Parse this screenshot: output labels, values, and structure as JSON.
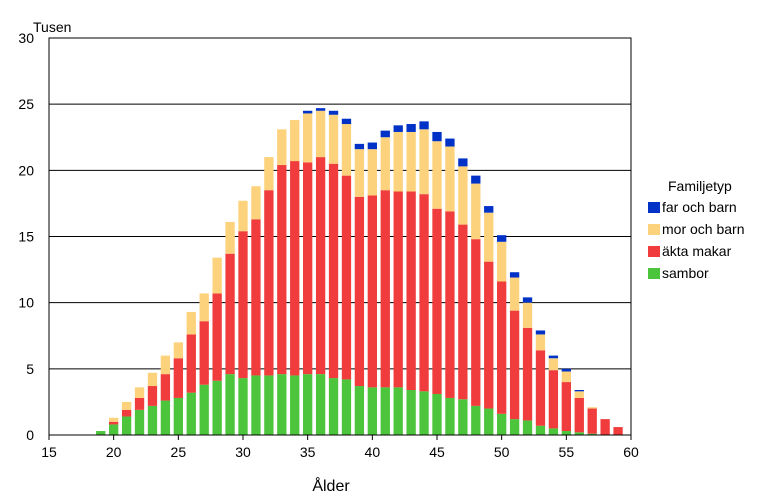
{
  "chart_data": {
    "type": "bar",
    "stacked": true,
    "unit_label": "Tusen",
    "xlabel": "Ålder",
    "xlim": [
      15,
      60
    ],
    "xticks": [
      15,
      20,
      25,
      30,
      35,
      40,
      45,
      50,
      55,
      60
    ],
    "ylim": [
      0,
      30
    ],
    "yticks": [
      0,
      5,
      10,
      15,
      20,
      25,
      30
    ],
    "grid": true,
    "legend_title": "Familjetyp",
    "legend_position": "right",
    "ages": [
      19,
      20,
      21,
      22,
      23,
      24,
      25,
      26,
      27,
      28,
      29,
      30,
      31,
      32,
      33,
      34,
      35,
      36,
      37,
      38,
      39,
      40,
      41,
      42,
      43,
      44,
      45,
      46,
      47,
      48,
      49,
      50,
      51,
      52,
      53,
      54,
      55,
      56,
      57,
      58,
      59
    ],
    "series": [
      {
        "name": "sambor",
        "color": "#4cc43c",
        "values": [
          0.3,
          0.8,
          1.4,
          1.9,
          2.2,
          2.6,
          2.8,
          3.2,
          3.8,
          4.1,
          4.6,
          4.3,
          4.5,
          4.5,
          4.6,
          4.5,
          4.6,
          4.6,
          4.3,
          4.2,
          3.7,
          3.6,
          3.6,
          3.6,
          3.4,
          3.3,
          3.1,
          2.8,
          2.7,
          2.2,
          2.0,
          1.6,
          1.2,
          1.1,
          0.7,
          0.5,
          0.3,
          0.2,
          0.1,
          0.0,
          0.0
        ]
      },
      {
        "name": "äkta makar",
        "color": "#f03c3c",
        "values": [
          0.0,
          0.2,
          0.5,
          0.9,
          1.5,
          2.0,
          3.0,
          4.4,
          4.8,
          6.6,
          9.1,
          11.1,
          11.8,
          14.0,
          15.8,
          16.2,
          16.0,
          16.4,
          16.2,
          15.4,
          14.3,
          14.5,
          14.9,
          14.8,
          15.0,
          14.9,
          14.0,
          14.1,
          13.2,
          12.6,
          11.1,
          10.0,
          8.2,
          7.0,
          5.7,
          4.4,
          3.7,
          2.6,
          1.9,
          1.2,
          0.6
        ]
      },
      {
        "name": "mor och barn",
        "color": "#fcd27c",
        "values": [
          0.0,
          0.3,
          0.6,
          0.8,
          1.0,
          1.4,
          1.2,
          1.7,
          2.1,
          2.7,
          2.4,
          2.3,
          2.5,
          2.5,
          2.7,
          3.1,
          3.7,
          3.5,
          3.7,
          3.9,
          3.6,
          3.5,
          4.0,
          4.5,
          4.5,
          4.9,
          5.1,
          4.9,
          4.4,
          4.2,
          3.7,
          3.0,
          2.5,
          1.9,
          1.2,
          0.9,
          0.8,
          0.5,
          0.1,
          0.0,
          0.0
        ]
      },
      {
        "name": "far och barn",
        "color": "#0032c8",
        "values": [
          0.0,
          0.0,
          0.0,
          0.0,
          0.0,
          0.0,
          0.0,
          0.0,
          0.0,
          0.0,
          0.0,
          0.0,
          0.0,
          0.0,
          0.0,
          0.0,
          0.2,
          0.2,
          0.3,
          0.4,
          0.4,
          0.5,
          0.5,
          0.5,
          0.6,
          0.6,
          0.7,
          0.6,
          0.6,
          0.6,
          0.5,
          0.5,
          0.4,
          0.4,
          0.3,
          0.2,
          0.2,
          0.1,
          0.0,
          0.0,
          0.0
        ]
      }
    ]
  }
}
